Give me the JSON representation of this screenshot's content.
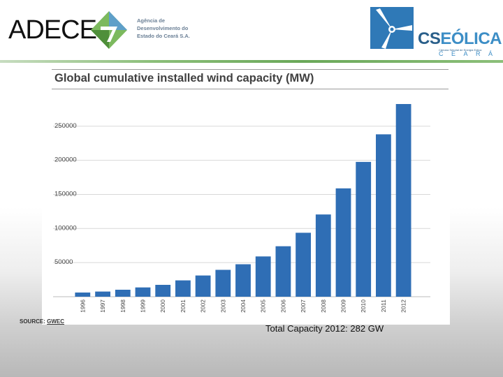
{
  "header": {
    "left_logo_text": "ADECE",
    "agency_lines": [
      "Agência de",
      "Desenvolvimento do",
      "Estado do Ceará S.A."
    ],
    "right_logo_cs": "CS",
    "right_logo_eolica": "EÓLICA",
    "right_logo_sub": "Câmara Setorial de Energia Eólica",
    "right_logo_ceara": "CEARÁ"
  },
  "colors": {
    "bar": "#2f6eb5",
    "grid": "#d8d8d8",
    "accent_green": "#6aa859",
    "brand_blue": "#2a5f8a"
  },
  "chart_data": {
    "type": "bar",
    "title": "Global cumulative installed wind capacity (MW)",
    "categories": [
      "1996",
      "1997",
      "1998",
      "1999",
      "2000",
      "2001",
      "2002",
      "2003",
      "2004",
      "2005",
      "2006",
      "2007",
      "2008",
      "2009",
      "2010",
      "2011",
      "2012"
    ],
    "values": [
      6100,
      7600,
      10200,
      13600,
      17400,
      23900,
      31100,
      39400,
      47600,
      59100,
      74000,
      93800,
      120600,
      158900,
      197600,
      238100,
      282500
    ],
    "ylim": [
      0,
      282500
    ],
    "yticks": [
      50000,
      100000,
      150000,
      200000,
      250000
    ],
    "ytick_labels": [
      "50000",
      "100000",
      "150000",
      "200000",
      "250000"
    ],
    "xlabel": "",
    "ylabel": "",
    "source_prefix": "SOURCE: ",
    "source_name": "GWEC"
  },
  "caption": "Total Capacity 2012: 282 GW"
}
